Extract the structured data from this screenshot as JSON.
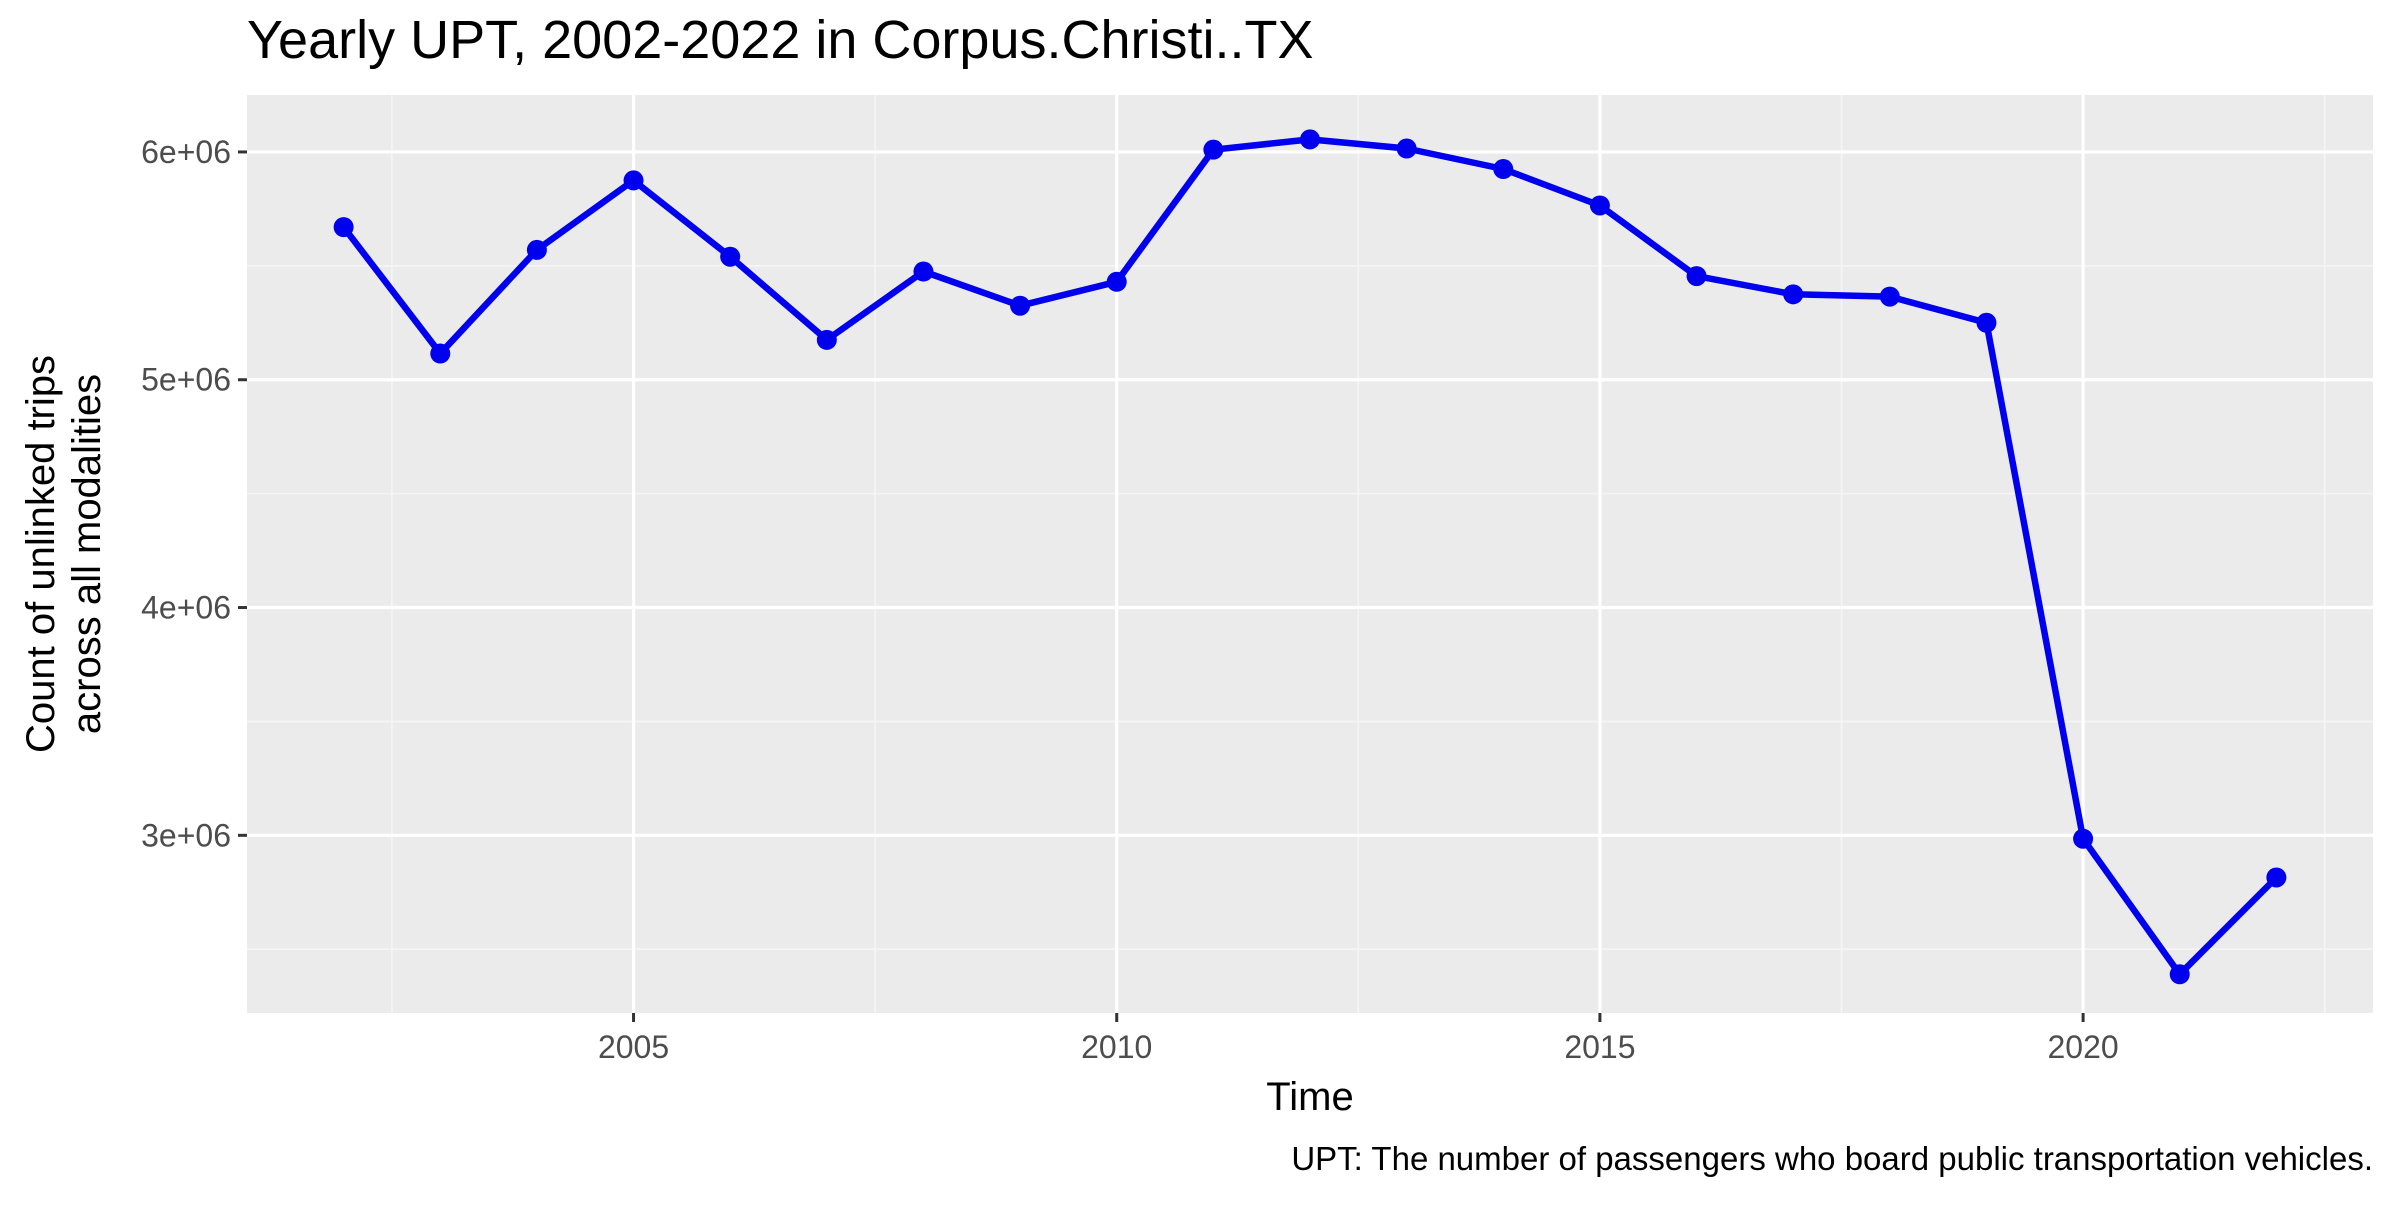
{
  "chart_data": {
    "type": "line",
    "title": "Yearly UPT, 2002-2022 in Corpus.Christi..TX",
    "xlabel": "Time",
    "ylabel_lines": [
      "Count of unlinked trips",
      "across all modalities"
    ],
    "caption": "UPT: The number of passengers who board public transportation vehicles.",
    "x_ticks": [
      2005,
      2010,
      2015,
      2020
    ],
    "x_tick_labels": [
      "2005",
      "2010",
      "2015",
      "2020"
    ],
    "x_minor_ticks": [
      2002.5,
      2007.5,
      2012.5,
      2017.5,
      2022.5
    ],
    "y_ticks": [
      3000000,
      4000000,
      5000000,
      6000000
    ],
    "y_tick_labels": [
      "3e+06",
      "4e+06",
      "5e+06",
      "6e+06"
    ],
    "y_minor_ticks": [
      2500000,
      3500000,
      4500000,
      5500000
    ],
    "xlim": [
      2001.0,
      2023.0
    ],
    "ylim": [
      2220000,
      6250000
    ],
    "grid": true,
    "legend": "none",
    "series": [
      {
        "color": "#0000ee",
        "x": [
          2002,
          2003,
          2004,
          2005,
          2006,
          2007,
          2008,
          2009,
          2010,
          2011,
          2012,
          2013,
          2014,
          2015,
          2016,
          2017,
          2018,
          2019,
          2020,
          2021,
          2022
        ],
        "y": [
          5670000,
          5115000,
          5570000,
          5875000,
          5540000,
          5175000,
          5475000,
          5325000,
          5430000,
          6010000,
          6055000,
          6015000,
          5925000,
          5765000,
          5455000,
          5375000,
          5365000,
          5250000,
          2985000,
          2390000,
          2815000
        ]
      }
    ]
  },
  "colors": {
    "panel_background": "#ebebeb",
    "grid_major": "#ffffff",
    "grid_minor": "#f5f5f5",
    "series": "#0000ee"
  }
}
